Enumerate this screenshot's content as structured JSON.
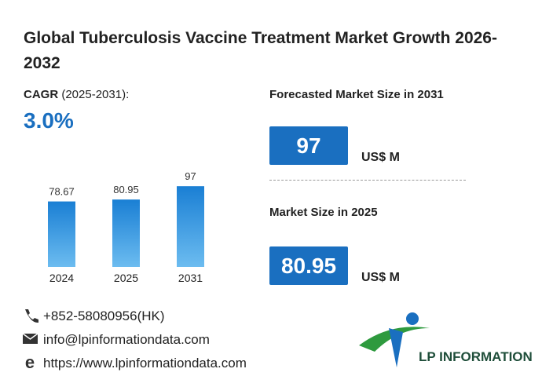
{
  "title": "Global Tuberculosis Vaccine Treatment Market Growth 2026-2032",
  "cagr": {
    "label": "CAGR",
    "period": "(2025-2031):",
    "value": "3.0%"
  },
  "forecast": {
    "label": "Forecasted Market Size in 2031",
    "value": "97",
    "unit": "US$ M"
  },
  "current": {
    "label": "Market Size in 2025",
    "value": "80.95",
    "unit": "US$ M"
  },
  "chart_data": {
    "type": "bar",
    "categories": [
      "2024",
      "2025",
      "2031"
    ],
    "values": [
      78.67,
      80.95,
      97
    ],
    "color": "#1a7fd4"
  },
  "contacts": {
    "phone": "+852-58080956(HK)",
    "email": "info@lpinformationdata.com",
    "website": "https://www.lpinformationdata.com"
  },
  "logo": "LP INFORMATION"
}
